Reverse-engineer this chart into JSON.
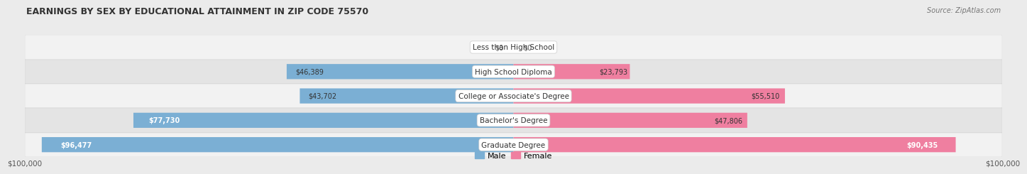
{
  "title": "EARNINGS BY SEX BY EDUCATIONAL ATTAINMENT IN ZIP CODE 75570",
  "source": "Source: ZipAtlas.com",
  "categories": [
    "Less than High School",
    "High School Diploma",
    "College or Associate's Degree",
    "Bachelor's Degree",
    "Graduate Degree"
  ],
  "male_values": [
    0,
    46389,
    43702,
    77730,
    96477
  ],
  "female_values": [
    0,
    23793,
    55510,
    47806,
    90435
  ],
  "male_color": "#7BAFD4",
  "female_color": "#EF7FA0",
  "male_label": "Male",
  "female_label": "Female",
  "max_value": 100000,
  "bg_color": "#EBEBEB",
  "row_colors": [
    "#F2F2F2",
    "#E4E4E4"
  ],
  "xlabel_left": "$100,000",
  "xlabel_right": "$100,000"
}
